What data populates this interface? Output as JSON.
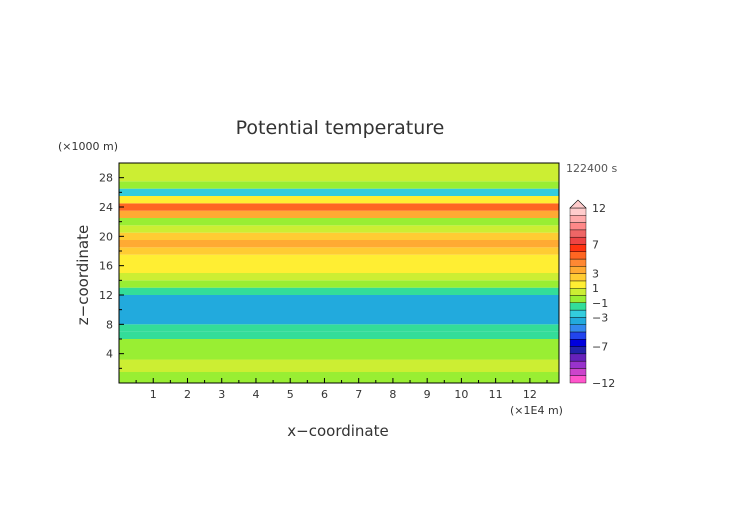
{
  "chart_data": {
    "type": "heatmap",
    "title": "Potential temperature",
    "time_label": "122400 s",
    "xlabel": "x−coordinate",
    "ylabel": "z−coordinate",
    "x_unit": "(×1E4 m)",
    "y_unit": "(×1000 m)",
    "xlim": [
      0,
      12.85
    ],
    "ylim": [
      0,
      30
    ],
    "x_ticks": [
      "1",
      "2",
      "3",
      "4",
      "5",
      "6",
      "7",
      "8",
      "9",
      "10",
      "11",
      "12"
    ],
    "y_ticks": [
      "4",
      "8",
      "12",
      "16",
      "20",
      "24",
      "28"
    ],
    "colorbar": {
      "levels": [
        -12,
        -11,
        -10,
        -9,
        -8,
        -7,
        -6,
        -5,
        -4,
        -3,
        -2,
        -1,
        0,
        1,
        2,
        3,
        4,
        5,
        6,
        7,
        8,
        9,
        10,
        11,
        12
      ],
      "labels": [
        "12",
        "7",
        "3",
        "1",
        "−1",
        "−3",
        "−7",
        "−12"
      ],
      "label_values": [
        12,
        7,
        3,
        1,
        -1,
        -3,
        -7,
        -12
      ]
    },
    "layers": [
      {
        "z": [
          0,
          1.5
        ],
        "value": -0.5
      },
      {
        "z": [
          1.5,
          3.2
        ],
        "value": 0.0
      },
      {
        "z": [
          3.2,
          4.5
        ],
        "value": -1.0
      },
      {
        "z": [
          4.5,
          6.0
        ],
        "value": -0.5
      },
      {
        "z": [
          6.0,
          7.0
        ],
        "value": -1.5
      },
      {
        "z": [
          7.0,
          8.0
        ],
        "value": -2.0
      },
      {
        "z": [
          8.0,
          12.0
        ],
        "value": -3.5
      },
      {
        "z": [
          12.0,
          13.0
        ],
        "value": -2.0
      },
      {
        "z": [
          13.0,
          14.0
        ],
        "value": -1.0
      },
      {
        "z": [
          14.0,
          15.0
        ],
        "value": 0.5
      },
      {
        "z": [
          15.0,
          16.5
        ],
        "value": 1.5
      },
      {
        "z": [
          16.5,
          17.5
        ],
        "value": 1.0
      },
      {
        "z": [
          17.5,
          18.5
        ],
        "value": 2.0
      },
      {
        "z": [
          18.5,
          19.5
        ],
        "value": 3.0
      },
      {
        "z": [
          19.5,
          20.5
        ],
        "value": 2.0
      },
      {
        "z": [
          20.5,
          21.5
        ],
        "value": 0.5
      },
      {
        "z": [
          21.5,
          22.5
        ],
        "value": -1.0
      },
      {
        "z": [
          22.5,
          23.5
        ],
        "value": 3.5
      },
      {
        "z": [
          23.5,
          24.5
        ],
        "value": 5.0
      },
      {
        "z": [
          24.5,
          25.5
        ],
        "value": 1.5
      },
      {
        "z": [
          25.5,
          26.5
        ],
        "value": -2.5
      },
      {
        "z": [
          26.5,
          27.5
        ],
        "value": -0.5
      },
      {
        "z": [
          27.5,
          30.0
        ],
        "value": 0.5
      }
    ]
  },
  "colors": {
    "palette": [
      "#ff55cc",
      "#cc44cc",
      "#9933cc",
      "#6622bb",
      "#2222aa",
      "#0000dd",
      "#2244ee",
      "#3388ee",
      "#22aadd",
      "#33ccdd",
      "#33dd99",
      "#99ee33",
      "#ccee33",
      "#ffee33",
      "#ffcc33",
      "#ffaa33",
      "#ff8833",
      "#ff6622",
      "#ff3311",
      "#ee4444",
      "#ee6666",
      "#ff8888",
      "#ffaaaa",
      "#ffcccc"
    ]
  }
}
